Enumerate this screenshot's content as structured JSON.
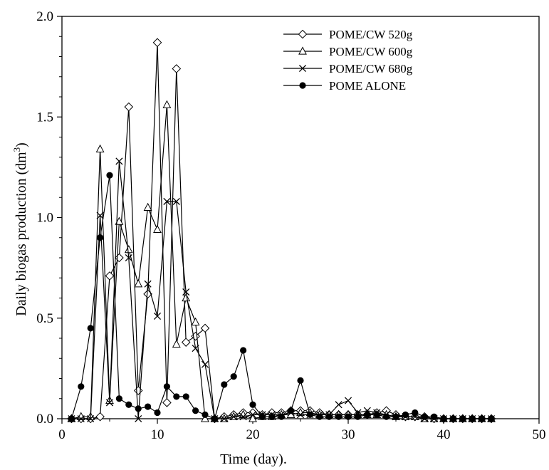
{
  "chart_data": {
    "type": "line",
    "title": "",
    "xlabel": "Time (day).",
    "ylabel": "Daily biogas production (dm3)",
    "ylabel_main": "Daily biogas production (dm",
    "ylabel_sup": "3",
    "ylabel_close": ")",
    "xlim": [
      0,
      50
    ],
    "ylim": [
      0,
      2.0
    ],
    "x_ticks": [
      0,
      10,
      20,
      30,
      40,
      50
    ],
    "y_ticks": [
      0.0,
      0.5,
      1.0,
      1.5,
      2.0
    ],
    "x_tick_labels": [
      "0",
      "10",
      "20",
      "30",
      "40",
      "50"
    ],
    "y_tick_labels": [
      "0.0",
      "0.5",
      "1.0",
      "1.5",
      "2.0"
    ],
    "grid": false,
    "legend_position": "top-right",
    "series": [
      {
        "name": "POME/CW 520g",
        "marker": "diamond-open",
        "x": [
          1,
          2,
          3,
          4,
          5,
          6,
          7,
          8,
          9,
          10,
          11,
          12,
          13,
          14,
          15,
          16,
          17,
          18,
          19,
          20,
          21,
          22,
          23,
          24,
          25,
          26,
          27,
          28,
          29,
          30,
          31,
          32,
          33,
          34,
          35,
          36,
          37,
          38,
          39,
          40,
          41,
          42,
          43,
          44,
          45
        ],
        "y": [
          0.0,
          0.0,
          0.0,
          0.01,
          0.71,
          0.8,
          1.55,
          0.14,
          0.62,
          1.87,
          0.08,
          1.74,
          0.38,
          0.41,
          0.45,
          0.0,
          0.01,
          0.02,
          0.03,
          0.03,
          0.02,
          0.03,
          0.03,
          0.04,
          0.04,
          0.04,
          0.03,
          0.02,
          0.02,
          0.02,
          0.02,
          0.02,
          0.03,
          0.04,
          0.02,
          0.01,
          0.01,
          0.01,
          0.0,
          0.0,
          0.0,
          0.0,
          0.0,
          0.0,
          0.0
        ]
      },
      {
        "name": "POME/CW 600g",
        "marker": "triangle-open",
        "x": [
          1,
          2,
          3,
          4,
          5,
          6,
          7,
          8,
          9,
          10,
          11,
          12,
          13,
          14,
          15,
          16,
          17,
          18,
          19,
          20,
          21,
          22,
          23,
          24,
          25,
          26,
          27,
          28,
          29,
          30,
          31,
          32,
          33,
          34,
          35,
          36,
          37,
          38,
          39,
          40,
          41,
          42,
          43,
          44,
          45
        ],
        "y": [
          0.0,
          0.01,
          0.01,
          1.34,
          0.09,
          0.98,
          0.84,
          0.67,
          1.05,
          0.94,
          1.56,
          0.37,
          0.6,
          0.48,
          0.0,
          0.0,
          0.0,
          0.01,
          0.02,
          0.0,
          0.01,
          0.01,
          0.02,
          0.02,
          0.03,
          0.03,
          0.02,
          0.02,
          0.02,
          0.02,
          0.02,
          0.02,
          0.02,
          0.02,
          0.01,
          0.01,
          0.01,
          0.0,
          0.0,
          0.0,
          0.0,
          0.0,
          0.0,
          0.0,
          0.0
        ]
      },
      {
        "name": "POME/CW 680g",
        "marker": "x",
        "x": [
          1,
          2,
          3,
          4,
          5,
          6,
          7,
          8,
          9,
          10,
          11,
          12,
          13,
          14,
          15,
          16,
          17,
          18,
          19,
          20,
          21,
          22,
          23,
          24,
          25,
          26,
          27,
          28,
          29,
          30,
          31,
          32,
          33,
          34,
          35,
          36,
          37,
          38,
          39,
          40,
          41,
          42,
          43,
          44,
          45
        ],
        "y": [
          0.0,
          0.0,
          0.0,
          1.01,
          0.08,
          1.28,
          0.8,
          0.0,
          0.67,
          0.51,
          1.08,
          1.08,
          0.63,
          0.35,
          0.27,
          0.0,
          0.0,
          0.01,
          0.01,
          0.02,
          0.02,
          0.02,
          0.02,
          0.03,
          0.02,
          0.02,
          0.02,
          0.02,
          0.07,
          0.09,
          0.03,
          0.04,
          0.03,
          0.02,
          0.01,
          0.01,
          0.01,
          0.0,
          0.0,
          0.0,
          0.0,
          0.0,
          0.0,
          0.0,
          0.0
        ]
      },
      {
        "name": "POME ALONE",
        "marker": "circle-filled",
        "x": [
          1,
          2,
          3,
          4,
          5,
          6,
          7,
          8,
          9,
          10,
          11,
          12,
          13,
          14,
          15,
          16,
          17,
          18,
          19,
          20,
          21,
          22,
          23,
          24,
          25,
          26,
          27,
          28,
          29,
          30,
          31,
          32,
          33,
          34,
          35,
          36,
          37,
          38,
          39,
          40,
          41,
          42,
          43,
          44,
          45
        ],
        "y": [
          0.0,
          0.16,
          0.45,
          0.9,
          1.21,
          0.1,
          0.07,
          0.05,
          0.06,
          0.03,
          0.16,
          0.11,
          0.11,
          0.04,
          0.02,
          0.0,
          0.17,
          0.21,
          0.34,
          0.07,
          0.01,
          0.01,
          0.01,
          0.04,
          0.19,
          0.02,
          0.01,
          0.01,
          0.01,
          0.01,
          0.01,
          0.02,
          0.02,
          0.01,
          0.01,
          0.02,
          0.03,
          0.01,
          0.01,
          0.0,
          0.0,
          0.0,
          0.0,
          0.0,
          0.0
        ]
      }
    ]
  }
}
